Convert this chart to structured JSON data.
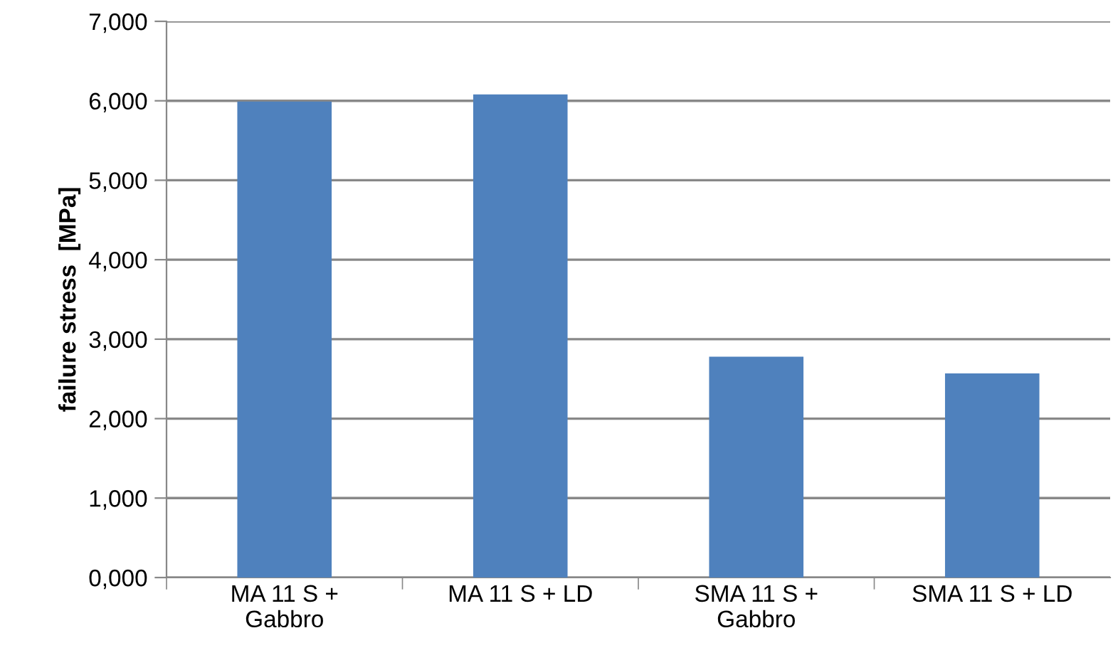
{
  "chart_data": {
    "type": "bar",
    "ylabel": "failure stress  [MPa]",
    "categories": [
      "MA 11 S +\nGabbro",
      "MA 11 S + LD",
      "SMA 11 S +\nGabbro",
      "SMA 11 S + LD"
    ],
    "values": [
      5990,
      6080,
      2780,
      2570
    ],
    "color": "#4f81bd",
    "ylim": [
      0,
      7000
    ],
    "yticks": [
      {
        "value": 0,
        "label": "0,000"
      },
      {
        "value": 1000,
        "label": "1,000"
      },
      {
        "value": 2000,
        "label": "2,000"
      },
      {
        "value": 3000,
        "label": "3,000"
      },
      {
        "value": 4000,
        "label": "4,000"
      },
      {
        "value": 5000,
        "label": "5,000"
      },
      {
        "value": 6000,
        "label": "6,000"
      },
      {
        "value": 7000,
        "label": "7,000"
      }
    ],
    "grid": "y"
  }
}
